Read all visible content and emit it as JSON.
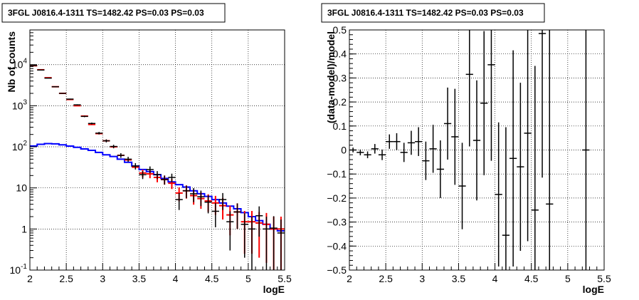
{
  "chart_data": [
    {
      "type": "line",
      "title": "3FGL J0816.4-1311 TS=1482.42 PS=0.03 PS=0.03",
      "xlabel": "logE",
      "ylabel": "Nb of counts",
      "xlim": [
        2,
        5.5
      ],
      "ylim": [
        0.1,
        70000
      ],
      "yscale": "log",
      "grid": true,
      "xticks": [
        "2",
        "2.5",
        "3",
        "3.5",
        "4",
        "4.5",
        "5",
        "5.5"
      ],
      "yticks": [
        {
          "label": "10",
          "exp": "-1",
          "value": 0.1
        },
        {
          "label": "1",
          "exp": "",
          "value": 1
        },
        {
          "label": "10",
          "exp": "",
          "value": 10
        },
        {
          "label": "10",
          "exp": "2",
          "value": 100
        },
        {
          "label": "10",
          "exp": "3",
          "value": 1000
        },
        {
          "label": "10",
          "exp": "4",
          "value": 10000
        }
      ],
      "bin_width": 0.1,
      "series": [
        {
          "role": "data",
          "color": "#000000",
          "x": [
            2.05,
            2.15,
            2.25,
            2.35,
            2.45,
            2.55,
            2.65,
            2.75,
            2.85,
            2.95,
            3.05,
            3.15,
            3.25,
            3.35,
            3.45,
            3.55,
            3.65,
            3.75,
            3.85,
            3.95,
            4.05,
            4.15,
            4.25,
            4.35,
            4.45,
            4.55,
            4.65,
            4.75,
            4.85,
            4.95,
            5.05,
            5.15,
            5.25,
            5.35,
            5.45
          ],
          "y": [
            9500,
            7400,
            4700,
            2900,
            2000,
            1450,
            1050,
            550,
            370,
            215,
            140,
            102,
            62,
            50,
            34,
            21,
            28,
            21,
            16,
            18,
            5.2,
            8.5,
            7.2,
            6.1,
            4.5,
            2.7,
            5.2,
            1.5,
            2.6,
            1.3,
            1.0,
            2.1,
            1.0,
            1.05,
            0.8
          ],
          "err": [
            97,
            86,
            69,
            54,
            45,
            38,
            32,
            23,
            19,
            15,
            12,
            10,
            8,
            7,
            6,
            4.6,
            5.3,
            4.6,
            4,
            4.2,
            2.3,
            2.9,
            2.7,
            2.5,
            2.1,
            1.6,
            2.3,
            1.2,
            1.6,
            1.1,
            1.0,
            1.45,
            1.0,
            1.0,
            0.9
          ]
        },
        {
          "role": "model-total",
          "color": "#ff0000",
          "x": [
            2.05,
            2.15,
            2.25,
            2.35,
            2.45,
            2.55,
            2.65,
            2.75,
            2.85,
            2.95,
            3.05,
            3.15,
            3.25,
            3.35,
            3.45,
            3.55,
            3.65,
            3.75,
            3.85,
            3.95,
            4.05,
            4.15,
            4.25,
            4.35,
            4.45,
            4.55,
            4.65,
            4.75,
            4.85,
            4.95,
            5.05,
            5.15,
            5.25,
            5.35,
            5.45
          ],
          "y": [
            9400,
            7500,
            4800,
            2900,
            2000,
            1420,
            1000,
            560,
            350,
            210,
            140,
            100,
            62,
            48,
            32,
            23,
            22,
            18,
            16,
            13,
            7.5,
            8.5,
            6.5,
            5.5,
            4.8,
            4.3,
            3.7,
            2.2,
            2.6,
            1.5,
            1.5,
            1.4,
            1.3,
            1.0,
            1.0
          ],
          "err": [
            0,
            0,
            0,
            0,
            0,
            0,
            0,
            0,
            0,
            0,
            0,
            0,
            0,
            0,
            0,
            5,
            4.8,
            4.3,
            4,
            3.6,
            2.8,
            3,
            2.6,
            2.4,
            2.2,
            2.1,
            2,
            1.5,
            1.6,
            1.25,
            1.25,
            1.2,
            1.15,
            1,
            1
          ]
        },
        {
          "role": "model-source",
          "color": "#0000ff",
          "x": [
            2.0,
            2.1,
            2.2,
            2.3,
            2.4,
            2.5,
            2.6,
            2.7,
            2.8,
            2.9,
            3.0,
            3.1,
            3.2,
            3.3,
            3.4,
            3.5,
            3.6,
            3.7,
            3.8,
            3.9,
            4.0,
            4.1,
            4.2,
            4.3,
            4.4,
            4.5,
            4.6,
            4.7,
            4.8,
            4.9,
            5.0,
            5.1,
            5.2,
            5.3,
            5.4
          ],
          "y": [
            105,
            115,
            120,
            118,
            112,
            104,
            97,
            89,
            82,
            73,
            64,
            58,
            50,
            42,
            34,
            28,
            25,
            21,
            17,
            14,
            12,
            10.5,
            8.5,
            7.2,
            6.2,
            5.2,
            4.3,
            3.6,
            3.1,
            2.5,
            2.0,
            1.6,
            1.3,
            1.0,
            0.9
          ]
        }
      ]
    },
    {
      "type": "scatter",
      "title": "3FGL J0816.4-1311 TS=1482.42 PS=0.03 PS=0.03",
      "xlabel": "logE",
      "ylabel": "(data-model)/model",
      "xlim": [
        2,
        5.5
      ],
      "ylim": [
        -0.5,
        0.5
      ],
      "grid": true,
      "xticks": [
        "2",
        "2.5",
        "3",
        "3.5",
        "4",
        "4.5",
        "5",
        "5.5"
      ],
      "yticks": [
        "−0.5",
        "−0.4",
        "−0.3",
        "−0.2",
        "−0.1",
        "0",
        "0.1",
        "0.2",
        "0.3",
        "0.4",
        "0.5"
      ],
      "bin_width": 0.1,
      "series": [
        {
          "role": "residuals",
          "color": "#000000",
          "x": [
            2.05,
            2.15,
            2.25,
            2.35,
            2.45,
            2.55,
            2.65,
            2.75,
            2.85,
            2.95,
            3.05,
            3.15,
            3.25,
            3.35,
            3.45,
            3.55,
            3.65,
            3.75,
            3.85,
            3.95,
            4.05,
            4.15,
            4.25,
            4.35,
            4.45,
            4.55,
            4.65,
            4.75,
            5.25
          ],
          "y": [
            0.0,
            -0.01,
            -0.02,
            0.005,
            -0.02,
            0.035,
            0.035,
            -0.01,
            0.03,
            0.035,
            -0.045,
            0.005,
            -0.08,
            0.11,
            0.055,
            -0.15,
            0.315,
            0.04,
            0.195,
            0.355,
            -0.185,
            -0.355,
            -0.035,
            -0.07,
            0.07,
            -0.25,
            0.485,
            -0.225,
            0.0
          ],
          "err": [
            0.01,
            0.012,
            0.014,
            0.02,
            0.022,
            0.03,
            0.035,
            0.04,
            0.05,
            0.06,
            0.08,
            0.1,
            0.12,
            0.15,
            0.2,
            0.18,
            0.3,
            0.25,
            0.3,
            0.4,
            0.3,
            0.45,
            0.45,
            0.35,
            0.45,
            0.6,
            0.6,
            0.8,
            0.9
          ]
        }
      ]
    }
  ]
}
